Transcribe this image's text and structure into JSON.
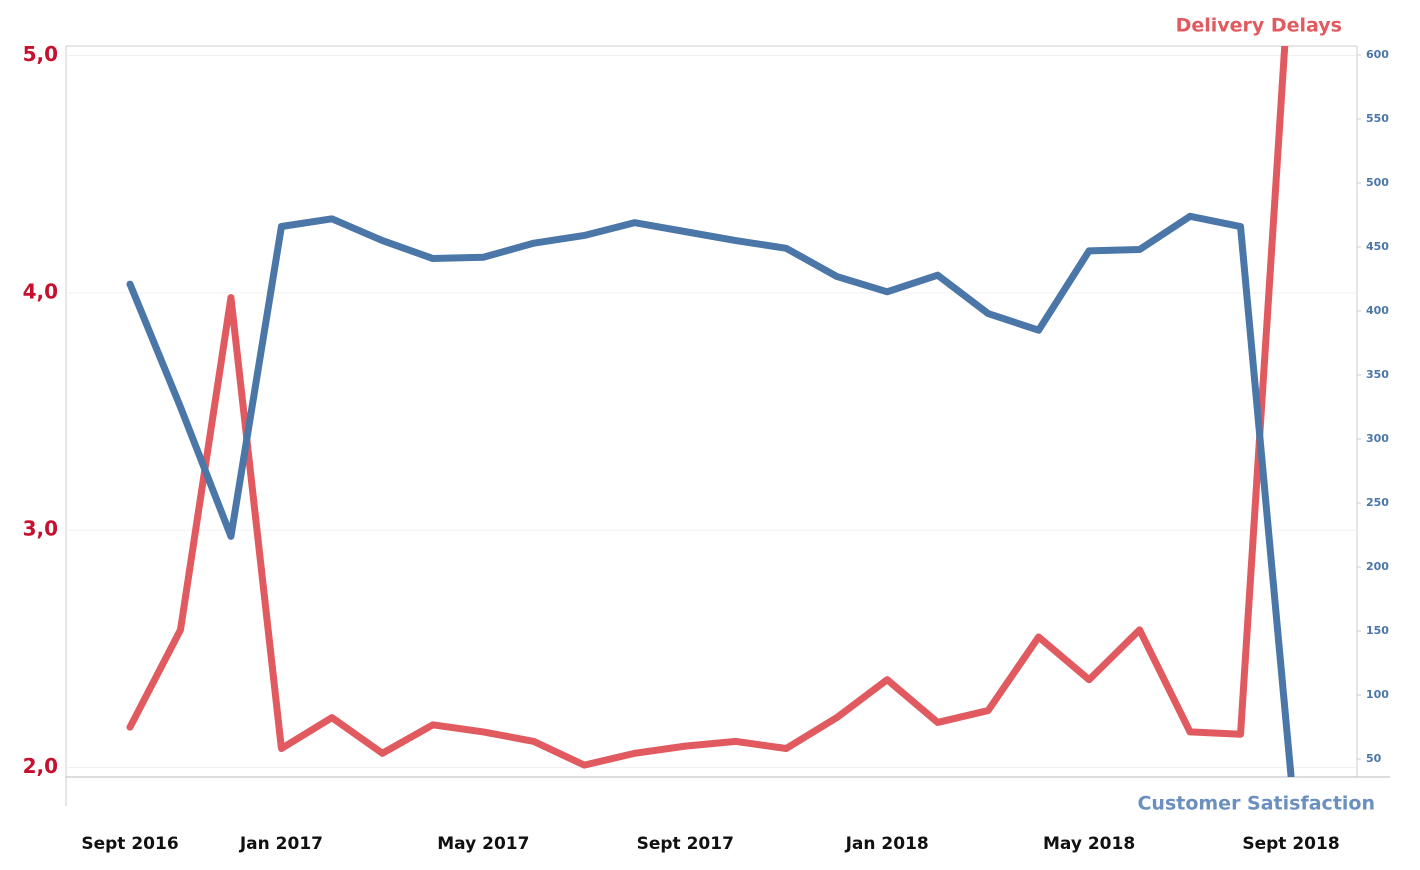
{
  "chart_data": {
    "type": "line",
    "categories": [
      "Sept 2016",
      null,
      null,
      "Jan 2017",
      null,
      null,
      null,
      "May 2017",
      null,
      null,
      null,
      "Sept 2017",
      null,
      null,
      null,
      "Jan 2018",
      null,
      null,
      null,
      "May 2018",
      null,
      null,
      null,
      "Sept 2018"
    ],
    "series": [
      {
        "name": "Delivery Delays",
        "color": "#e05a5f",
        "axis": "y",
        "values": [
          2.17,
          2.58,
          3.98,
          2.08,
          2.21,
          2.06,
          2.18,
          2.15,
          2.11,
          2.01,
          2.06,
          2.09,
          2.11,
          2.08,
          2.21,
          2.37,
          2.19,
          2.24,
          2.55,
          2.37,
          2.58,
          2.15,
          2.14,
          5.45
        ]
      },
      {
        "name": "Customer Satisfaction",
        "color": "#4a76a8",
        "axis": "y2",
        "values": [
          421,
          325,
          224,
          466,
          472,
          455,
          441,
          442,
          453,
          459,
          469,
          462,
          455,
          449,
          427,
          415,
          428,
          398,
          385,
          447,
          448,
          474,
          466,
          37
        ]
      }
    ],
    "ylim": [
      1.96,
      5.04
    ],
    "yticks": [
      {
        "value": 2,
        "label": "2,0"
      },
      {
        "value": 3,
        "label": "3,0"
      },
      {
        "value": 4,
        "label": "4,0"
      },
      {
        "value": 5,
        "label": "5,0"
      }
    ],
    "y2lim": [
      36,
      607
    ],
    "y2ticks": [
      50,
      100,
      150,
      200,
      250,
      300,
      350,
      400,
      450,
      500,
      550,
      600
    ],
    "grid": true
  }
}
